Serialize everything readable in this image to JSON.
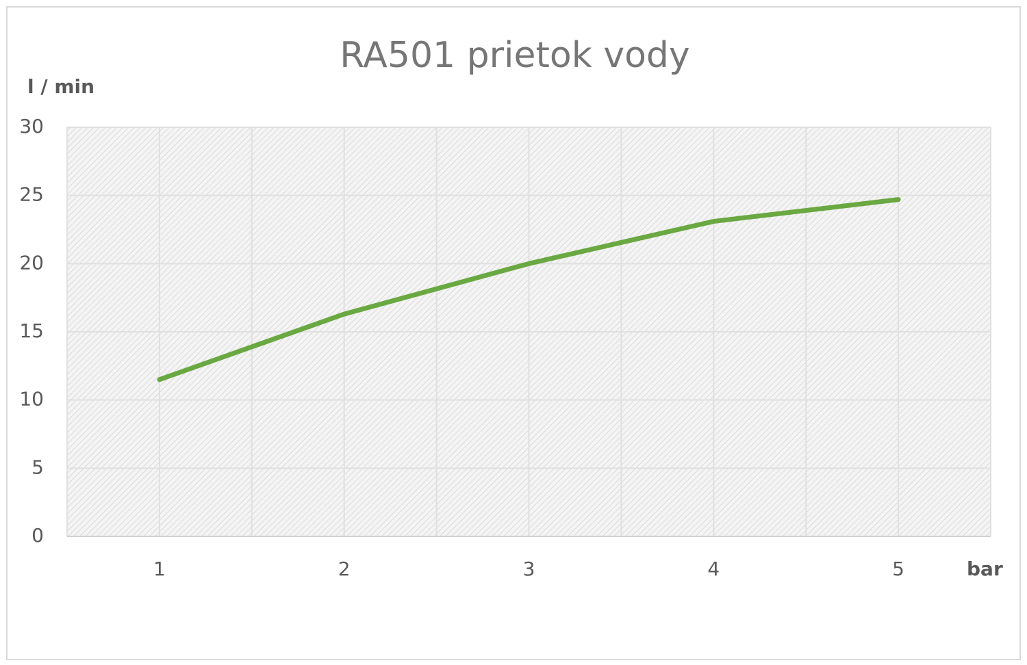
{
  "chart_data": {
    "type": "line",
    "title": "RA501 prietok vody",
    "y_label": "l / min",
    "x_label": "bar",
    "categories": [
      "1",
      "2",
      "3",
      "4",
      "5"
    ],
    "series": [
      {
        "name": "prietok",
        "color": "#6aa842",
        "values": [
          11.5,
          16.3,
          20,
          23.1,
          24.7
        ]
      }
    ],
    "ylim": [
      0,
      30
    ],
    "yticks": [
      0,
      5,
      10,
      15,
      20,
      25,
      30
    ],
    "grid": true
  }
}
